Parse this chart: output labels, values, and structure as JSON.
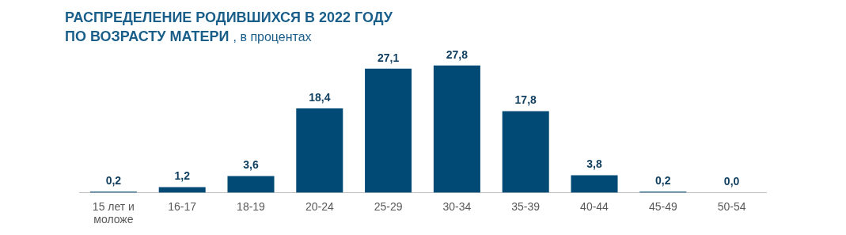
{
  "chart_data": {
    "type": "bar",
    "title": "РАСПРЕДЕЛЕНИЕ РОДИВШИХСЯ В 2022 ГОДУ ПО ВОЗРАСТУ МАТЕРИ",
    "subtitle": ", в процентах",
    "categories": [
      "15 лет и моложе",
      "16-17",
      "18-19",
      "20-24",
      "25-29",
      "30-34",
      "35-39",
      "40-44",
      "45-49",
      "50-54"
    ],
    "values": [
      0.2,
      1.2,
      3.6,
      18.4,
      27.1,
      27.8,
      17.8,
      3.8,
      0.2,
      0.0
    ],
    "value_labels": [
      "0,2",
      "1,2",
      "3,6",
      "18,4",
      "27,1",
      "27,8",
      "17,8",
      "3,8",
      "0,2",
      "0,0"
    ],
    "color": "#004a75",
    "grid": false,
    "legend": false,
    "tick_labels": "x"
  }
}
